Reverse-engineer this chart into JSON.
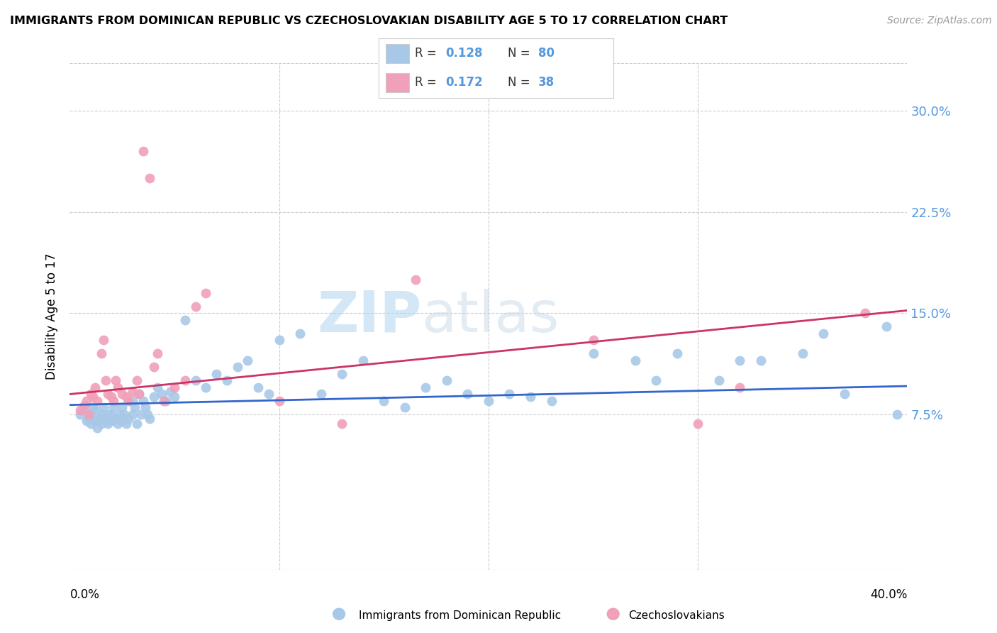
{
  "title": "IMMIGRANTS FROM DOMINICAN REPUBLIC VS CZECHOSLOVAKIAN DISABILITY AGE 5 TO 17 CORRELATION CHART",
  "source": "Source: ZipAtlas.com",
  "ylabel": "Disability Age 5 to 17",
  "ytick_labels": [
    "7.5%",
    "15.0%",
    "22.5%",
    "30.0%"
  ],
  "ytick_values": [
    0.075,
    0.15,
    0.225,
    0.3
  ],
  "xlim": [
    0.0,
    0.4
  ],
  "ylim": [
    -0.04,
    0.335
  ],
  "watermark_zip": "ZIP",
  "watermark_atlas": "atlas",
  "blue_color": "#a8c8e8",
  "pink_color": "#f0a0b8",
  "blue_line_color": "#3366cc",
  "pink_line_color": "#cc3366",
  "right_tick_color": "#5599dd",
  "legend_R1": "0.128",
  "legend_N1": "80",
  "legend_R2": "0.172",
  "legend_N2": "38",
  "blue_line_x": [
    0.0,
    0.4
  ],
  "blue_line_y": [
    0.082,
    0.096
  ],
  "pink_line_x": [
    0.0,
    0.4
  ],
  "pink_line_y": [
    0.09,
    0.152
  ],
  "blue_scatter_x": [
    0.005,
    0.007,
    0.008,
    0.009,
    0.01,
    0.01,
    0.011,
    0.012,
    0.012,
    0.013,
    0.014,
    0.015,
    0.015,
    0.016,
    0.017,
    0.018,
    0.018,
    0.019,
    0.02,
    0.02,
    0.021,
    0.022,
    0.023,
    0.024,
    0.025,
    0.025,
    0.026,
    0.027,
    0.028,
    0.03,
    0.03,
    0.031,
    0.032,
    0.033,
    0.034,
    0.035,
    0.036,
    0.037,
    0.038,
    0.04,
    0.042,
    0.044,
    0.046,
    0.048,
    0.05,
    0.055,
    0.06,
    0.065,
    0.07,
    0.075,
    0.08,
    0.085,
    0.09,
    0.095,
    0.1,
    0.11,
    0.12,
    0.13,
    0.14,
    0.15,
    0.16,
    0.17,
    0.18,
    0.19,
    0.2,
    0.21,
    0.22,
    0.23,
    0.25,
    0.27,
    0.28,
    0.29,
    0.31,
    0.32,
    0.33,
    0.35,
    0.36,
    0.37,
    0.39,
    0.395
  ],
  "blue_scatter_y": [
    0.075,
    0.078,
    0.07,
    0.072,
    0.068,
    0.075,
    0.08,
    0.07,
    0.078,
    0.065,
    0.072,
    0.075,
    0.068,
    0.08,
    0.07,
    0.075,
    0.068,
    0.072,
    0.075,
    0.07,
    0.08,
    0.072,
    0.068,
    0.075,
    0.08,
    0.07,
    0.075,
    0.068,
    0.072,
    0.085,
    0.075,
    0.08,
    0.068,
    0.09,
    0.075,
    0.085,
    0.08,
    0.075,
    0.072,
    0.088,
    0.095,
    0.09,
    0.085,
    0.092,
    0.088,
    0.145,
    0.1,
    0.095,
    0.105,
    0.1,
    0.11,
    0.115,
    0.095,
    0.09,
    0.13,
    0.135,
    0.09,
    0.105,
    0.115,
    0.085,
    0.08,
    0.095,
    0.1,
    0.09,
    0.085,
    0.09,
    0.088,
    0.085,
    0.12,
    0.115,
    0.1,
    0.12,
    0.1,
    0.115,
    0.115,
    0.12,
    0.135,
    0.09,
    0.14,
    0.075
  ],
  "pink_scatter_x": [
    0.005,
    0.007,
    0.008,
    0.009,
    0.01,
    0.011,
    0.012,
    0.013,
    0.015,
    0.016,
    0.017,
    0.018,
    0.02,
    0.021,
    0.022,
    0.023,
    0.025,
    0.027,
    0.028,
    0.03,
    0.032,
    0.033,
    0.035,
    0.038,
    0.04,
    0.042,
    0.045,
    0.05,
    0.055,
    0.06,
    0.065,
    0.1,
    0.13,
    0.3,
    0.32,
    0.38,
    0.165,
    0.25
  ],
  "pink_scatter_y": [
    0.078,
    0.082,
    0.085,
    0.075,
    0.09,
    0.088,
    0.095,
    0.085,
    0.12,
    0.13,
    0.1,
    0.09,
    0.088,
    0.085,
    0.1,
    0.095,
    0.09,
    0.088,
    0.085,
    0.092,
    0.1,
    0.09,
    0.27,
    0.25,
    0.11,
    0.12,
    0.085,
    0.095,
    0.1,
    0.155,
    0.165,
    0.085,
    0.068,
    0.068,
    0.095,
    0.15,
    0.175,
    0.13
  ]
}
